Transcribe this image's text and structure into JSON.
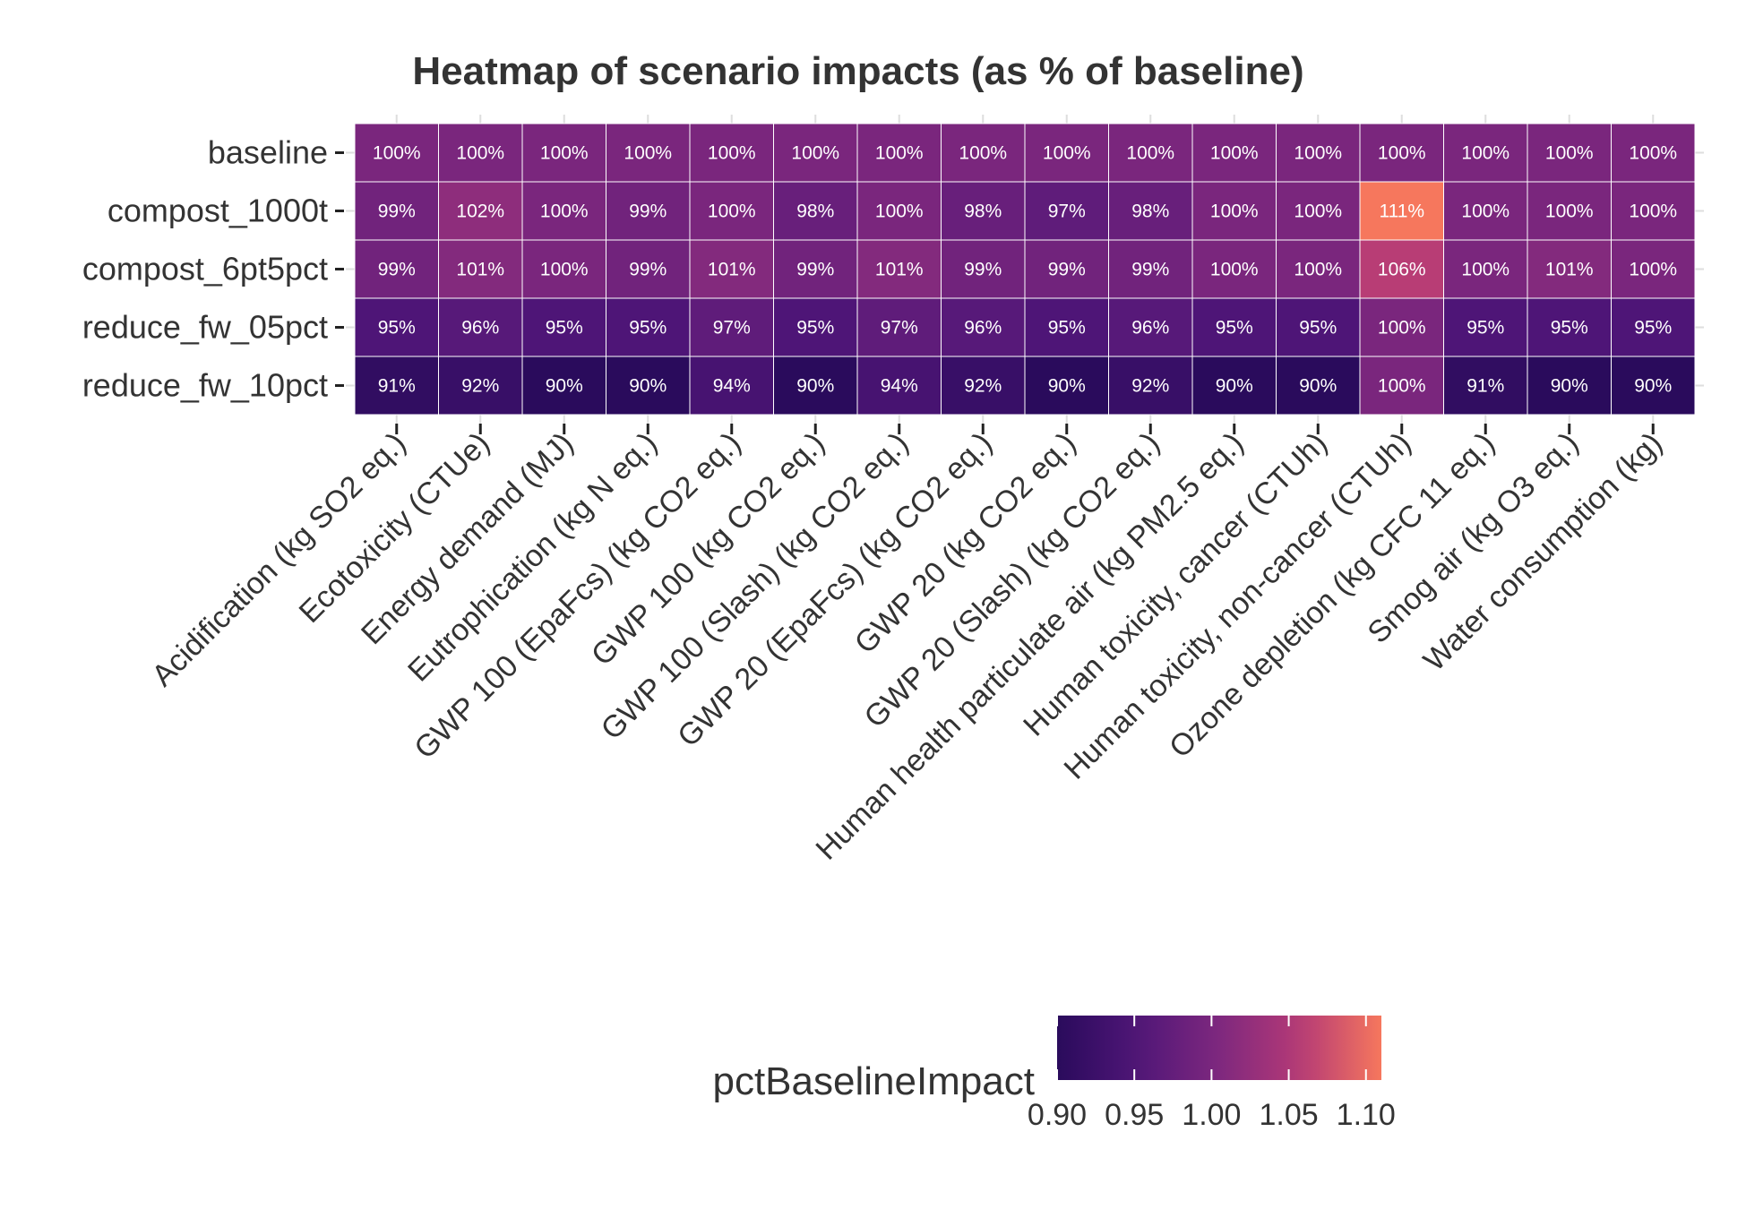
{
  "chart_data": {
    "type": "heatmap",
    "title": "Heatmap of scenario impacts (as % of baseline)",
    "rows": [
      "baseline",
      "compost_1000t",
      "compost_6pt5pct",
      "reduce_fw_05pct",
      "reduce_fw_10pct"
    ],
    "columns": [
      "Acidification (kg SO2 eq.)",
      "Ecotoxicity (CTUe)",
      "Energy demand (MJ)",
      "Eutrophication (kg N eq.)",
      "GWP 100 (EpaFcs) (kg CO2 eq.)",
      "GWP 100 (kg CO2 eq.)",
      "GWP 100 (Slash) (kg CO2 eq.)",
      "GWP 20 (EpaFcs) (kg CO2 eq.)",
      "GWP 20 (kg CO2 eq.)",
      "GWP 20 (Slash) (kg CO2 eq.)",
      "Human health particulate air (kg PM2.5 eq.)",
      "Human toxicity, cancer (CTUh)",
      "Human toxicity, non-cancer (CTUh)",
      "Ozone depletion (kg CFC 11 eq.)",
      "Smog air (kg O3 eq.)",
      "Water consumption (kg)"
    ],
    "values": [
      [
        1.0,
        1.0,
        1.0,
        1.0,
        1.0,
        1.0,
        1.0,
        1.0,
        1.0,
        1.0,
        1.0,
        1.0,
        1.0,
        1.0,
        1.0,
        1.0
      ],
      [
        0.99,
        1.02,
        1.0,
        0.99,
        1.0,
        0.98,
        1.0,
        0.98,
        0.97,
        0.98,
        1.0,
        1.0,
        1.11,
        1.0,
        1.0,
        1.0
      ],
      [
        0.99,
        1.01,
        1.0,
        0.99,
        1.01,
        0.99,
        1.01,
        0.99,
        0.99,
        0.99,
        1.0,
        1.0,
        1.06,
        1.0,
        1.01,
        1.0
      ],
      [
        0.95,
        0.96,
        0.95,
        0.95,
        0.97,
        0.95,
        0.97,
        0.96,
        0.95,
        0.96,
        0.95,
        0.95,
        1.0,
        0.95,
        0.95,
        0.95
      ],
      [
        0.91,
        0.92,
        0.9,
        0.9,
        0.94,
        0.9,
        0.94,
        0.92,
        0.9,
        0.92,
        0.9,
        0.9,
        1.0,
        0.91,
        0.9,
        0.9
      ]
    ],
    "cell_labels": [
      [
        "100%",
        "100%",
        "100%",
        "100%",
        "100%",
        "100%",
        "100%",
        "100%",
        "100%",
        "100%",
        "100%",
        "100%",
        "100%",
        "100%",
        "100%",
        "100%"
      ],
      [
        "99%",
        "102%",
        "100%",
        "99%",
        "100%",
        "98%",
        "100%",
        "98%",
        "97%",
        "98%",
        "100%",
        "100%",
        "111%",
        "100%",
        "100%",
        "100%"
      ],
      [
        "99%",
        "101%",
        "100%",
        "99%",
        "101%",
        "99%",
        "101%",
        "99%",
        "99%",
        "99%",
        "100%",
        "100%",
        "106%",
        "100%",
        "101%",
        "100%"
      ],
      [
        "95%",
        "96%",
        "95%",
        "95%",
        "97%",
        "95%",
        "97%",
        "96%",
        "95%",
        "96%",
        "95%",
        "95%",
        "100%",
        "95%",
        "95%",
        "95%"
      ],
      [
        "91%",
        "92%",
        "90%",
        "90%",
        "94%",
        "90%",
        "94%",
        "92%",
        "90%",
        "92%",
        "90%",
        "90%",
        "100%",
        "91%",
        "90%",
        "90%"
      ]
    ],
    "legend": {
      "title": "pctBaselineImpact",
      "ticks": [
        0.9,
        0.95,
        1.0,
        1.05,
        1.1
      ],
      "tick_labels": [
        "0.90",
        "0.95",
        "1.00",
        "1.05",
        "1.10"
      ],
      "range": [
        0.9,
        1.11
      ],
      "placement": "bottom"
    },
    "colors": {
      "low": "#2f0c5f",
      "mid": "#8b2c7e",
      "high": "#f4735b"
    }
  }
}
